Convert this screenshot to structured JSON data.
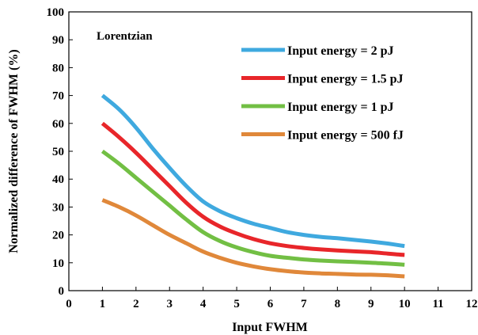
{
  "chart_data": {
    "type": "line",
    "title": "",
    "annotation": "Lorentzian",
    "xlabel": "Input FWHM",
    "ylabel": "Normalized difference of  FWHM (%)",
    "xlim": [
      0,
      12
    ],
    "ylim": [
      0,
      100
    ],
    "x_ticks": [
      "0",
      "1",
      "2",
      "3",
      "4",
      "5",
      "6",
      "7",
      "8",
      "9",
      "10",
      "11",
      "12"
    ],
    "y_ticks": [
      "0",
      "10",
      "20",
      "30",
      "40",
      "50",
      "60",
      "70",
      "80",
      "90",
      "100"
    ],
    "grid": false,
    "legend_position": "upper right",
    "x": [
      1,
      1.5,
      2,
      2.5,
      3,
      3.5,
      4,
      4.5,
      5,
      5.5,
      6,
      6.5,
      7,
      7.5,
      8,
      8.5,
      9,
      9.5,
      10
    ],
    "series": [
      {
        "name": "Input energy = 2 pJ",
        "color": "#3fa9df",
        "values": [
          70,
          65,
          58.5,
          51,
          44,
          37.5,
          32,
          28.5,
          26,
          24,
          22.5,
          21,
          20,
          19.3,
          18.8,
          18.2,
          17.6,
          16.9,
          16
        ]
      },
      {
        "name": "Input energy = 1.5 pJ",
        "color": "#e8262a",
        "values": [
          60,
          55,
          49.5,
          43.5,
          37.5,
          31.5,
          26.5,
          23,
          20.5,
          18.5,
          17,
          16,
          15.3,
          14.8,
          14.4,
          14.1,
          13.8,
          13.3,
          12.8
        ]
      },
      {
        "name": "Input energy = 1 pJ",
        "color": "#72bf44",
        "values": [
          50,
          45.5,
          40.5,
          35.5,
          30.5,
          25.5,
          21,
          17.8,
          15.5,
          13.8,
          12.5,
          11.8,
          11.2,
          10.8,
          10.5,
          10.3,
          10,
          9.7,
          9.3
        ]
      },
      {
        "name": "Input energy = 500 fJ",
        "color": "#e0883a",
        "values": [
          32.5,
          30,
          27,
          23.5,
          20,
          17,
          14,
          11.8,
          10,
          8.7,
          7.7,
          7,
          6.5,
          6.2,
          6,
          5.8,
          5.7,
          5.5,
          5.1
        ]
      }
    ]
  }
}
